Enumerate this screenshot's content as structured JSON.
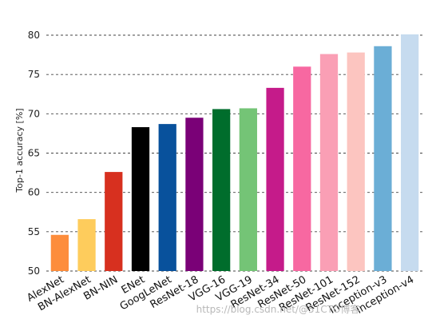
{
  "chart_data": {
    "type": "bar",
    "title": "",
    "xlabel": "",
    "ylabel": "Top-1 accuracy [%]",
    "ylim": [
      50,
      80
    ],
    "yticks": [
      50,
      55,
      60,
      65,
      70,
      75,
      80
    ],
    "grid": "horizontal dashed",
    "categories": [
      "AlexNet",
      "BN-AlexNet",
      "BN-NIN",
      "ENet",
      "GoogLeNet",
      "ResNet-18",
      "VGG-16",
      "VGG-19",
      "ResNet-34",
      "ResNet-50",
      "ResNet-101",
      "ResNet-152",
      "Inception-v3",
      "Inception-v4"
    ],
    "values": [
      54.6,
      56.6,
      62.6,
      68.3,
      68.7,
      69.5,
      70.6,
      70.7,
      73.3,
      76.0,
      77.6,
      77.8,
      78.6,
      80.1
    ],
    "colors": [
      "#fd8d3c",
      "#fecc5c",
      "#d7301f",
      "#000000",
      "#08519c",
      "#7a0177",
      "#006d2c",
      "#74c476",
      "#c51b8a",
      "#f768a1",
      "#fa9fb5",
      "#fcc5c0",
      "#6baed6",
      "#c6dbef"
    ]
  },
  "watermark": "https://blog.csdn.net/@51CTO博客"
}
